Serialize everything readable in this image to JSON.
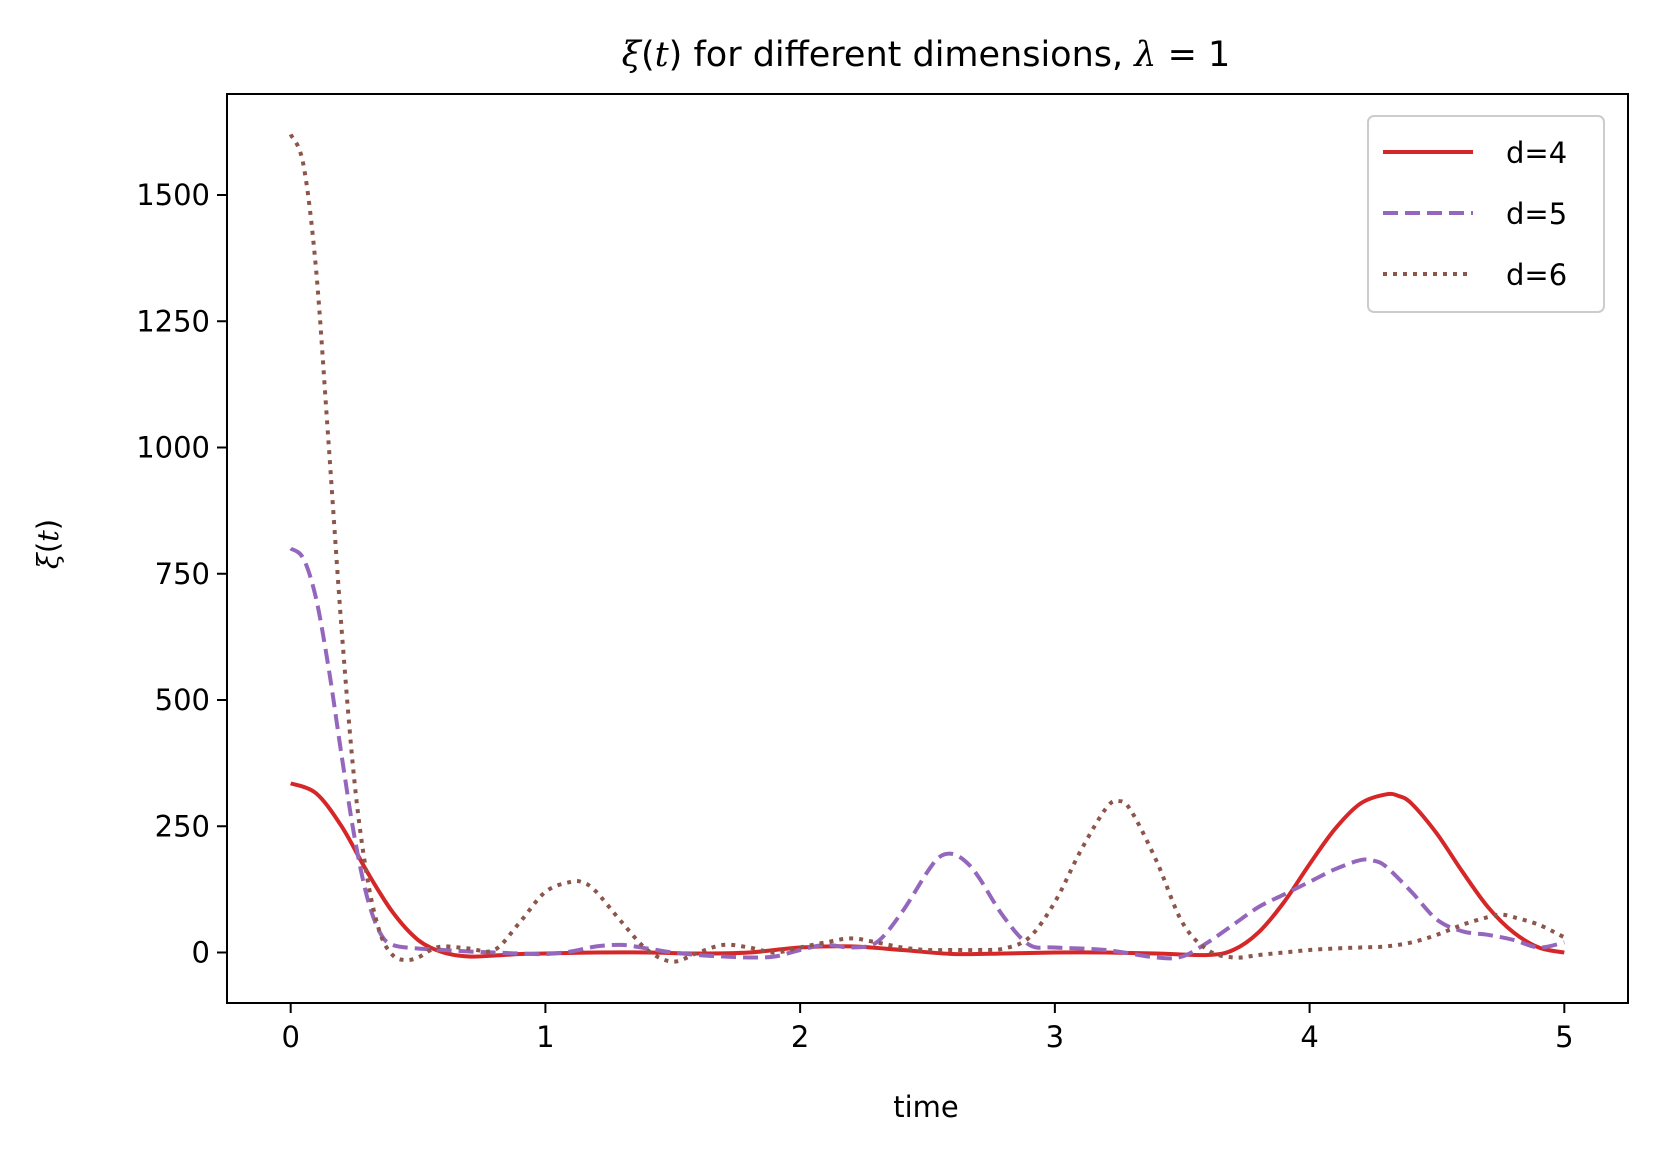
{
  "chart_data": {
    "type": "line",
    "title": {
      "math_var": "ξ",
      "math_arg": "t",
      "text": " for different dimensions, ",
      "lambda_symbol": "λ",
      "lambda_value": " = 1"
    },
    "xlabel": "time",
    "ylabel": {
      "math_var": "ξ",
      "math_arg": "t"
    },
    "xlim": [
      -0.25,
      5.25
    ],
    "ylim": [
      -100,
      1700
    ],
    "xticks": [
      0,
      1,
      2,
      3,
      4,
      5
    ],
    "yticks": [
      0,
      250,
      500,
      750,
      1000,
      1250,
      1500
    ],
    "grid": false,
    "legend_position": "upper right",
    "series": [
      {
        "name": "d=4",
        "color": "#d62728",
        "style": "solid",
        "x": [
          0,
          0.1,
          0.2,
          0.3,
          0.4,
          0.5,
          0.6,
          0.7,
          0.8,
          0.9,
          1.0,
          1.2,
          1.4,
          1.6,
          1.8,
          2.0,
          2.2,
          2.4,
          2.6,
          2.8,
          3.0,
          3.2,
          3.4,
          3.6,
          3.7,
          3.8,
          3.9,
          4.0,
          4.1,
          4.2,
          4.3,
          4.35,
          4.4,
          4.5,
          4.6,
          4.7,
          4.8,
          4.9,
          5.0
        ],
        "y": [
          335,
          315,
          250,
          160,
          80,
          25,
          0,
          -8,
          -6,
          -3,
          -2,
          0,
          0,
          -2,
          0,
          10,
          12,
          5,
          -3,
          -2,
          0,
          0,
          -2,
          -5,
          5,
          40,
          100,
          175,
          245,
          295,
          313,
          310,
          295,
          235,
          160,
          90,
          40,
          10,
          0
        ]
      },
      {
        "name": "d=5",
        "color": "#9467bd",
        "style": "dashed",
        "x": [
          0,
          0.05,
          0.1,
          0.15,
          0.2,
          0.25,
          0.3,
          0.35,
          0.4,
          0.5,
          0.6,
          0.7,
          0.8,
          0.9,
          1.0,
          1.1,
          1.2,
          1.3,
          1.4,
          1.5,
          1.6,
          1.7,
          1.8,
          1.9,
          2.0,
          2.1,
          2.2,
          2.3,
          2.4,
          2.5,
          2.55,
          2.6,
          2.65,
          2.7,
          2.8,
          2.9,
          3.0,
          3.2,
          3.4,
          3.5,
          3.6,
          3.7,
          3.8,
          3.9,
          4.0,
          4.1,
          4.2,
          4.25,
          4.3,
          4.4,
          4.5,
          4.6,
          4.7,
          4.8,
          4.9,
          5.0
        ],
        "y": [
          800,
          780,
          700,
          560,
          390,
          230,
          110,
          40,
          15,
          8,
          5,
          2,
          0,
          -2,
          -3,
          2,
          12,
          15,
          8,
          0,
          -5,
          -8,
          -10,
          -8,
          5,
          15,
          10,
          20,
          80,
          160,
          190,
          195,
          180,
          150,
          70,
          15,
          10,
          5,
          -10,
          -8,
          20,
          55,
          90,
          115,
          140,
          165,
          183,
          182,
          170,
          120,
          65,
          42,
          35,
          25,
          10,
          20
        ]
      },
      {
        "name": "d=6",
        "color": "#8c564b",
        "style": "dotted",
        "x": [
          0,
          0.05,
          0.1,
          0.15,
          0.2,
          0.25,
          0.3,
          0.35,
          0.4,
          0.45,
          0.5,
          0.55,
          0.6,
          0.7,
          0.8,
          0.9,
          1.0,
          1.1,
          1.15,
          1.2,
          1.3,
          1.4,
          1.5,
          1.6,
          1.7,
          1.8,
          1.9,
          2.0,
          2.1,
          2.2,
          2.3,
          2.4,
          2.5,
          2.6,
          2.7,
          2.8,
          2.9,
          3.0,
          3.1,
          3.2,
          3.25,
          3.3,
          3.4,
          3.5,
          3.6,
          3.7,
          3.8,
          3.9,
          4.0,
          4.1,
          4.2,
          4.3,
          4.4,
          4.5,
          4.6,
          4.7,
          4.75,
          4.8,
          4.9,
          5.0
        ],
        "y": [
          1620,
          1560,
          1350,
          1000,
          640,
          340,
          150,
          40,
          -5,
          -15,
          -10,
          5,
          12,
          8,
          5,
          60,
          120,
          140,
          138,
          120,
          60,
          5,
          -18,
          0,
          15,
          10,
          0,
          10,
          20,
          28,
          20,
          10,
          5,
          5,
          5,
          8,
          30,
          100,
          200,
          285,
          300,
          280,
          180,
          60,
          5,
          -10,
          -5,
          0,
          5,
          8,
          10,
          12,
          20,
          35,
          55,
          70,
          75,
          70,
          55,
          30
        ]
      }
    ]
  }
}
